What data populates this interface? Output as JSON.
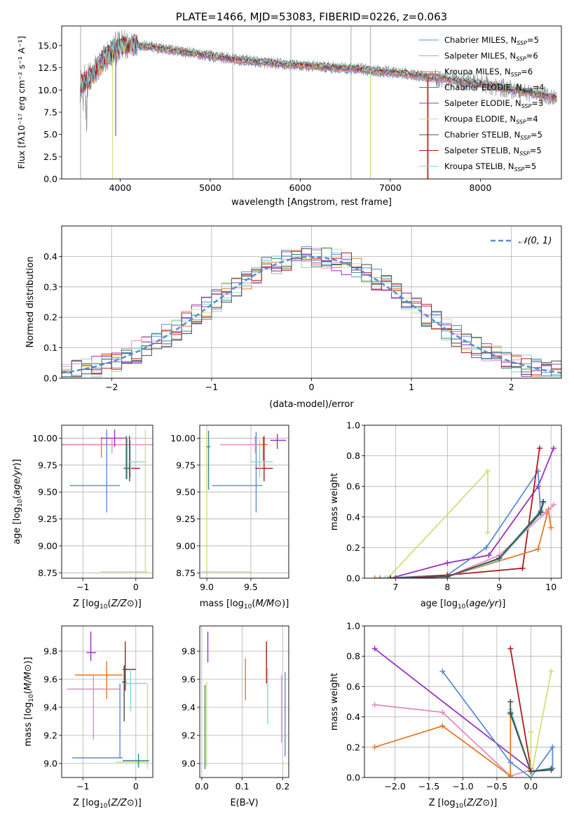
{
  "chart_data": [
    {
      "id": "spectrum",
      "type": "line",
      "title": "PLATE=1466, MJD=53083, FIBERID=0226, z=0.063",
      "xlabel": "wavelength [Angstrom, rest frame]",
      "ylabel": "Flux [fλ10⁻¹⁷ erg cm⁻² s⁻¹ A⁻¹]",
      "xlim": [
        3350,
        8900
      ],
      "ylim": [
        0,
        17.2
      ],
      "xticks": [
        4000,
        5000,
        6000,
        7000,
        8000
      ],
      "yticks": [
        0.0,
        2.5,
        5.0,
        7.5,
        10.0,
        12.5,
        15.0
      ],
      "grid": false,
      "legend_position": "top-right",
      "legend": [
        {
          "label": "Chabrier MILES, N",
          "sub": "SSP",
          "tail": "=5",
          "color": "#5b8bd6"
        },
        {
          "label": "Salpeter MILES, N",
          "sub": "SSP",
          "tail": "=6",
          "color": "#e58cbf"
        },
        {
          "label": "Kroupa MILES, N",
          "sub": "SSP",
          "tail": "=6",
          "color": "#e07b27"
        },
        {
          "label": "Chabrier ELODIE, N",
          "sub": "SSP",
          "tail": "=4",
          "color": "#3a8686"
        },
        {
          "label": "Salpeter ELODIE, N",
          "sub": "SSP",
          "tail": "=3",
          "color": "#9b30c0"
        },
        {
          "label": "Kroupa ELODIE, N",
          "sub": "SSP",
          "tail": "=4",
          "color": "#c8e37a"
        },
        {
          "label": "Chabrier STELIB, N",
          "sub": "SSP",
          "tail": "=5",
          "color": "#4a4a4a"
        },
        {
          "label": "Salpeter STELIB, N",
          "sub": "SSP",
          "tail": "=5",
          "color": "#b01a1a"
        },
        {
          "label": "Kroupa STELIB, N",
          "sub": "SSP",
          "tail": "=5",
          "color": "#84d8d8"
        }
      ],
      "data_color": "#808080",
      "data_key_points": {
        "x": [
          3550,
          3650,
          3750,
          3850,
          3950,
          4050,
          4150,
          4300,
          4500,
          4700,
          4900,
          5100,
          5300,
          5500,
          5800,
          6100,
          6400,
          6600,
          6800,
          7000,
          7200,
          7400,
          7600,
          7800,
          8000,
          8200,
          8400,
          8600,
          8800
        ],
        "y": [
          10.5,
          11.2,
          12.5,
          13.8,
          14.6,
          15.0,
          15.1,
          14.9,
          14.6,
          14.3,
          14.0,
          13.7,
          13.4,
          13.2,
          12.9,
          12.7,
          12.5,
          12.4,
          12.2,
          12.0,
          11.8,
          11.5,
          11.3,
          11.0,
          10.7,
          10.3,
          10.0,
          9.6,
          9.2
        ]
      },
      "gray_bands_x": [
        3560,
        5250,
        5895,
        6563,
        6780
      ]
    },
    {
      "id": "residuals",
      "type": "step",
      "xlabel": "(data-model)/error",
      "ylabel": "Normed distribution",
      "xlim": [
        -2.5,
        2.5
      ],
      "ylim": [
        0,
        0.5
      ],
      "xticks": [
        -2,
        -1,
        0,
        1,
        2
      ],
      "yticks": [
        0.0,
        0.1,
        0.2,
        0.3,
        0.4
      ],
      "grid": true,
      "legend_position": "top-right",
      "legend_label": "𝒩(0, 1)",
      "normal_color": "#5b8bd6",
      "bin_width": 0.1,
      "series_colors": [
        "#5b8bd6",
        "#e58cbf",
        "#e07b27",
        "#9b30c0",
        "#c8e37a",
        "#84d8d8",
        "#b01a1a",
        "#4a4a4a",
        "#3a8686"
      ]
    },
    {
      "id": "age_vs_Z",
      "type": "errorbar",
      "xlabel_html": "Z [log10(Z/Z⊙)]",
      "ylabel": "age  [log10(age/yr)]",
      "xlim": [
        -1.4,
        0.32
      ],
      "ylim": [
        8.7,
        10.12
      ],
      "xticks": [
        -1,
        0
      ],
      "yticks": [
        8.75,
        9.0,
        9.25,
        9.5,
        9.75,
        10.0
      ],
      "grid": true,
      "points": [
        {
          "x": -0.65,
          "y": 9.94,
          "xerr": [
            0.75,
            0.55
          ],
          "yerr": [
            0.12,
            0.07
          ],
          "color": "#e07b27"
        },
        {
          "x": -0.45,
          "y": 9.94,
          "xerr": [
            0.9,
            0.95
          ],
          "yerr": [
            0.08,
            0.06
          ],
          "color": "#e58cbf"
        },
        {
          "x": -0.55,
          "y": 9.56,
          "xerr": [
            0.7,
            0.25
          ],
          "yerr": [
            0.25,
            0.52
          ],
          "color": "#5b8bd6"
        },
        {
          "x": -0.4,
          "y": 10.0,
          "xerr": [
            0.25,
            0.2
          ],
          "yerr": [
            0.08,
            0.08
          ],
          "color": "#9b30c0"
        },
        {
          "x": -0.12,
          "y": 9.72,
          "xerr": [
            0.1,
            0.2
          ],
          "yerr": [
            0.12,
            0.3
          ],
          "color": "#b01a1a"
        },
        {
          "x": -0.1,
          "y": 9.78,
          "xerr": [
            0.05,
            0.27
          ],
          "yerr": [
            0.15,
            0.2
          ],
          "color": "#84d8d8"
        },
        {
          "x": 0.18,
          "y": 8.76,
          "xerr": [
            0.85,
            0.05
          ],
          "yerr": [
            0.0,
            1.32
          ],
          "color": "#c8e37a"
        },
        {
          "x": -0.18,
          "y": 9.72,
          "xerr": [
            0.05,
            0.05
          ],
          "yerr": [
            0.1,
            0.3
          ],
          "color": "#4a4a4a"
        },
        {
          "x": -0.17,
          "y": 9.72,
          "xerr": [
            0.04,
            0.04
          ],
          "yerr": [
            0.1,
            0.28
          ],
          "color": "#3a8686"
        }
      ]
    },
    {
      "id": "age_vs_mass",
      "type": "errorbar",
      "xlabel_html": "mass [log10(M/M⊙)]",
      "ylabel": "",
      "xlim": [
        8.92,
        9.93
      ],
      "ylim": [
        8.7,
        10.12
      ],
      "xticks": [
        9.0,
        9.5
      ],
      "yticks": [
        8.75,
        9.0,
        9.25,
        9.5,
        9.75,
        10.0
      ],
      "grid": true,
      "points": [
        {
          "x": 9.0,
          "y": 8.76,
          "xerr": [
            0.06,
            0.5
          ],
          "yerr": [
            0.0,
            1.32
          ],
          "color": "#c8e37a"
        },
        {
          "x": 9.56,
          "y": 9.56,
          "xerr": [
            0.5,
            0.07
          ],
          "yerr": [
            0.25,
            0.5
          ],
          "color": "#5b8bd6"
        },
        {
          "x": 9.55,
          "y": 9.94,
          "xerr": [
            0.4,
            0.1
          ],
          "yerr": [
            0.08,
            0.08
          ],
          "color": "#e58cbf"
        },
        {
          "x": 9.64,
          "y": 9.94,
          "xerr": [
            0.05,
            0.05
          ],
          "yerr": [
            0.15,
            0.07
          ],
          "color": "#e07b27"
        },
        {
          "x": 9.8,
          "y": 9.98,
          "xerr": [
            0.08,
            0.1
          ],
          "yerr": [
            0.08,
            0.06
          ],
          "color": "#9b30c0"
        },
        {
          "x": 9.65,
          "y": 9.72,
          "xerr": [
            0.1,
            0.1
          ],
          "yerr": [
            0.12,
            0.3
          ],
          "color": "#b01a1a"
        },
        {
          "x": 9.6,
          "y": 9.78,
          "xerr": [
            0.1,
            0.15
          ],
          "yerr": [
            0.15,
            0.2
          ],
          "color": "#84d8d8"
        },
        {
          "x": 9.02,
          "y": 9.92,
          "xerr": [
            0.02,
            0.02
          ],
          "yerr": [
            0.4,
            0.15
          ],
          "color": "#3a8686"
        }
      ]
    },
    {
      "id": "weight_vs_age",
      "type": "line",
      "xlabel_html": "age  [log10(age/yr)]",
      "ylabel": "mass weight",
      "xlim": [
        6.4,
        10.2
      ],
      "ylim": [
        0,
        1.0
      ],
      "xticks": [
        7,
        8,
        9,
        10
      ],
      "yticks": [
        0.0,
        0.2,
        0.4,
        0.6,
        0.8,
        1.0
      ],
      "grid": true,
      "series": [
        {
          "color": "#c8e37a",
          "x": [
            6.85,
            8.78,
            8.78
          ],
          "y": [
            0.0,
            0.7,
            0.3
          ]
        },
        {
          "color": "#9b30c0",
          "x": [
            6.9,
            8.0,
            8.8,
            9.75,
            10.05
          ],
          "y": [
            0.0,
            0.1,
            0.15,
            0.6,
            0.85
          ]
        },
        {
          "color": "#5b8bd6",
          "x": [
            6.7,
            8.0,
            8.75,
            9.75,
            9.8
          ],
          "y": [
            0.0,
            0.02,
            0.2,
            0.7,
            0.42
          ]
        },
        {
          "color": "#b01a1a",
          "x": [
            7.0,
            8.0,
            9.45,
            9.78
          ],
          "y": [
            0.0,
            0.02,
            0.065,
            0.85
          ]
        },
        {
          "color": "#e07b27",
          "x": [
            6.6,
            8.0,
            9.75,
            9.95,
            10.0
          ],
          "y": [
            0.0,
            0.01,
            0.19,
            0.45,
            0.33
          ]
        },
        {
          "color": "#e58cbf",
          "x": [
            6.8,
            8.0,
            9.0,
            9.9,
            10.05
          ],
          "y": [
            0.0,
            0.01,
            0.15,
            0.43,
            0.48
          ]
        },
        {
          "color": "#84d8d8",
          "x": [
            6.8,
            8.0,
            9.0,
            9.8,
            9.85
          ],
          "y": [
            0.0,
            0.01,
            0.12,
            0.42,
            0.49
          ]
        },
        {
          "color": "#3a8686",
          "x": [
            6.9,
            8.0,
            9.0,
            9.8,
            9.85
          ],
          "y": [
            0.0,
            0.01,
            0.13,
            0.44,
            0.5
          ]
        },
        {
          "color": "#4a4a4a",
          "x": [
            6.9,
            8.0,
            9.0,
            9.8,
            9.85
          ],
          "y": [
            0.0,
            0.01,
            0.13,
            0.43,
            0.5
          ]
        }
      ]
    },
    {
      "id": "mass_vs_Z",
      "type": "errorbar",
      "xlabel_html": "Z [log10(Z/Z⊙)]",
      "ylabel_html": "mass [log10(M/M⊙)]",
      "xlim": [
        -1.4,
        0.32
      ],
      "ylim": [
        8.9,
        9.98
      ],
      "xticks": [
        -1,
        0
      ],
      "yticks": [
        9.0,
        9.2,
        9.4,
        9.6,
        9.8
      ],
      "grid": true,
      "points": [
        {
          "x": -0.85,
          "y": 9.79,
          "xerr": [
            0.08,
            0.1
          ],
          "yerr": [
            0.06,
            0.15
          ],
          "color": "#9b30c0"
        },
        {
          "x": -0.8,
          "y": 9.53,
          "xerr": [
            0.5,
            0.5
          ],
          "yerr": [
            0.36,
            0.1
          ],
          "color": "#e58cbf"
        },
        {
          "x": -0.55,
          "y": 9.63,
          "xerr": [
            0.6,
            0.3
          ],
          "yerr": [
            0.17,
            0.1
          ],
          "color": "#e07b27"
        },
        {
          "x": -0.3,
          "y": 9.04,
          "xerr": [
            0.9,
            0.05
          ],
          "yerr": [
            0.0,
            0.53
          ],
          "color": "#5b8bd6"
        },
        {
          "x": -0.2,
          "y": 9.67,
          "xerr": [
            0.05,
            0.2
          ],
          "yerr": [
            0.15,
            0.2
          ],
          "color": "#b01a1a"
        },
        {
          "x": -0.1,
          "y": 9.57,
          "xerr": [
            0.1,
            0.3
          ],
          "yerr": [
            0.2,
            0.1
          ],
          "color": "#84d8d8"
        },
        {
          "x": 0.22,
          "y": 9.01,
          "xerr": [
            0.6,
            0.02
          ],
          "yerr": [
            0.05,
            0.56
          ],
          "color": "#c8e37a"
        },
        {
          "x": -0.22,
          "y": 9.58,
          "xerr": [
            0.04,
            0.04
          ],
          "yerr": [
            0.28,
            0.12
          ],
          "color": "#4a4a4a"
        },
        {
          "x": 0.05,
          "y": 9.02,
          "xerr": [
            0.3,
            0.2
          ],
          "yerr": [
            0.05,
            0.05
          ],
          "color": "#3a8686"
        }
      ]
    },
    {
      "id": "mass_vs_ebv",
      "type": "errorbar",
      "xlabel": "E(B-V)",
      "ylabel": "",
      "xlim": [
        -0.005,
        0.215
      ],
      "ylim": [
        8.9,
        9.98
      ],
      "xticks": [
        0.0,
        0.1,
        0.2
      ],
      "yticks": [
        9.0,
        9.2,
        9.4,
        9.6,
        9.8
      ],
      "grid": true,
      "points": [
        {
          "x": 0.015,
          "y": 9.82,
          "xerr": [
            0,
            0
          ],
          "yerr": [
            0.1,
            0.12
          ],
          "color": "#9b30c0"
        },
        {
          "x": 0.012,
          "y": 9.3,
          "xerr": [
            0,
            0
          ],
          "yerr": [
            0.32,
            0.28
          ],
          "color": "#c8e37a"
        },
        {
          "x": 0.008,
          "y": 9.26,
          "xerr": [
            0,
            0
          ],
          "yerr": [
            0.3,
            0.3
          ],
          "color": "#3a8686"
        },
        {
          "x": 0.108,
          "y": 9.6,
          "xerr": [
            0,
            0
          ],
          "yerr": [
            0.15,
            0.15
          ],
          "color": "#e07b27"
        },
        {
          "x": 0.16,
          "y": 9.72,
          "xerr": [
            0,
            0
          ],
          "yerr": [
            0.15,
            0.15
          ],
          "color": "#b01a1a"
        },
        {
          "x": 0.163,
          "y": 9.48,
          "xerr": [
            0,
            0
          ],
          "yerr": [
            0.2,
            0.2
          ],
          "color": "#84d8d8"
        },
        {
          "x": 0.197,
          "y": 9.4,
          "xerr": [
            0,
            0
          ],
          "yerr": [
            0.25,
            0.23
          ],
          "color": "#e58cbf"
        },
        {
          "x": 0.206,
          "y": 9.35,
          "xerr": [
            0,
            0
          ],
          "yerr": [
            0.3,
            0.3
          ],
          "color": "#5b8bd6"
        }
      ]
    },
    {
      "id": "weight_vs_Z",
      "type": "line",
      "xlabel_html": "Z [log10(Z/Z⊙)]",
      "ylabel": "mass weight",
      "xlim": [
        -2.45,
        0.45
      ],
      "ylim": [
        0,
        1.0
      ],
      "xticks": [
        -2.0,
        -1.5,
        -1.0,
        -0.5,
        0.0
      ],
      "yticks": [
        0.0,
        0.2,
        0.4,
        0.6,
        0.8,
        1.0
      ],
      "grid": true,
      "series": [
        {
          "color": "#9b30c0",
          "x": [
            -2.3,
            0.0
          ],
          "y": [
            0.85,
            0.05
          ]
        },
        {
          "color": "#e58cbf",
          "x": [
            -2.3,
            -1.3,
            -0.3,
            0.0
          ],
          "y": [
            0.48,
            0.43,
            0.01,
            0.05
          ]
        },
        {
          "color": "#e07b27",
          "x": [
            -2.3,
            -1.3,
            -0.3,
            -0.3
          ],
          "y": [
            0.2,
            0.34,
            0.01,
            0.42
          ]
        },
        {
          "color": "#5b8bd6",
          "x": [
            -1.3,
            -0.3,
            0.0,
            0.32,
            0.32
          ],
          "y": [
            0.7,
            0.1,
            0.0,
            0.2,
            0.06
          ]
        },
        {
          "color": "#b01a1a",
          "x": [
            -0.3,
            0.0
          ],
          "y": [
            0.85,
            0.06
          ]
        },
        {
          "color": "#c8e37a",
          "x": [
            0.0,
            0.0,
            0.3,
            0.3,
            0.0
          ],
          "y": [
            0.3,
            0.0,
            0.7,
            0.7,
            0.0
          ]
        },
        {
          "color": "#84d8d8",
          "x": [
            -0.3,
            0.0,
            0.3
          ],
          "y": [
            0.45,
            0.04,
            0.06
          ]
        },
        {
          "color": "#3a8686",
          "x": [
            -0.3,
            0.0,
            0.3
          ],
          "y": [
            0.43,
            0.04,
            0.06
          ]
        },
        {
          "color": "#4a4a4a",
          "x": [
            -0.3,
            -0.3,
            0.0,
            0.3
          ],
          "y": [
            0.5,
            0.42,
            0.04,
            0.05
          ]
        }
      ]
    }
  ]
}
